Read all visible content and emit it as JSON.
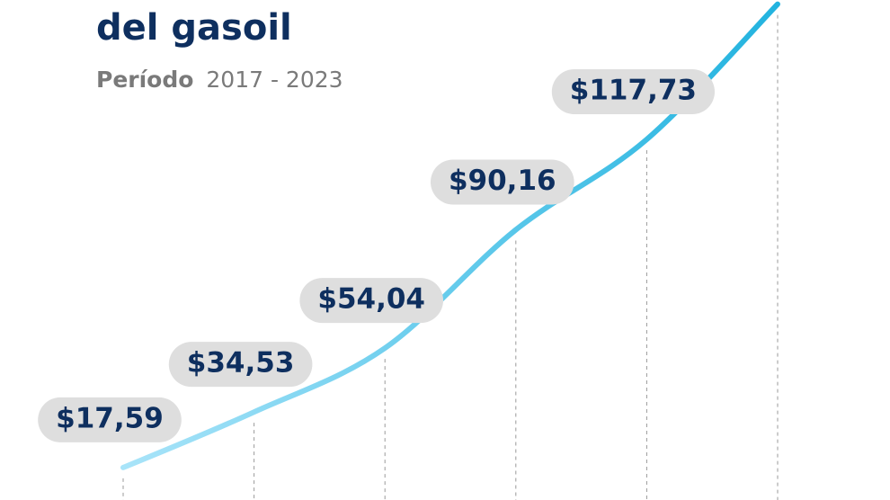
{
  "title": "del gasoil",
  "subtitle_lead": "Período",
  "subtitle": "2017 - 2023",
  "chart_data": {
    "type": "line",
    "categories": [
      null,
      null,
      null,
      null,
      null,
      null
    ],
    "values": [
      17.59,
      34.53,
      54.04,
      90.16,
      117.73,
      159
    ],
    "value_labels": [
      "$17,59",
      "$34,53",
      "$54,04",
      "$90,16",
      "$117,73",
      null
    ],
    "ylim": [
      0,
      160
    ],
    "colors": [
      "#a9e4f9",
      "#22b3df"
    ]
  }
}
